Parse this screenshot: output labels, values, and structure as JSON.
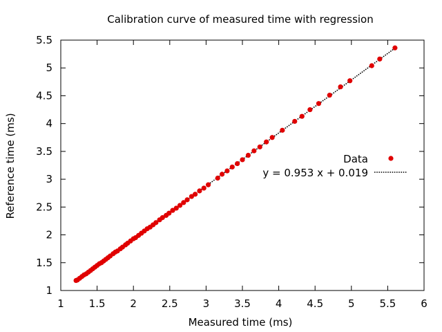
{
  "chart_data": {
    "type": "scatter",
    "title": "Calibration curve of measured time with regression",
    "xlabel": "Measured time (ms)",
    "ylabel": "Reference time (ms)",
    "xlim": [
      1,
      6
    ],
    "ylim": [
      1,
      5.5
    ],
    "xticks": [
      "1",
      "1.5",
      "2",
      "2.5",
      "3",
      "3.5",
      "4",
      "4.5",
      "5",
      "5.5",
      "6"
    ],
    "yticks": [
      "1",
      "1.5",
      "2",
      "2.5",
      "3",
      "3.5",
      "4",
      "4.5",
      "5",
      "5.5"
    ],
    "grid": false,
    "legend_position": "right",
    "series": [
      {
        "name": "Data",
        "kind": "points",
        "color": "#e00000",
        "x": [
          1.21,
          1.23,
          1.26,
          1.29,
          1.32,
          1.35,
          1.38,
          1.41,
          1.44,
          1.47,
          1.5,
          1.53,
          1.56,
          1.59,
          1.62,
          1.65,
          1.68,
          1.72,
          1.75,
          1.78,
          1.82,
          1.85,
          1.89,
          1.92,
          1.96,
          2.0,
          2.03,
          2.07,
          2.11,
          2.15,
          2.19,
          2.23,
          2.27,
          2.31,
          2.36,
          2.4,
          2.45,
          2.49,
          2.54,
          2.59,
          2.64,
          2.69,
          2.74,
          2.8,
          2.85,
          2.91,
          2.97,
          3.03,
          3.16,
          3.22,
          3.29,
          3.36,
          3.43,
          3.5,
          3.58,
          3.66,
          3.74,
          3.83,
          3.91,
          4.05,
          4.22,
          4.32,
          4.43,
          4.55,
          4.7,
          4.85,
          4.98,
          5.28,
          5.39,
          5.6
        ],
        "y": [
          1.18,
          1.19,
          1.22,
          1.25,
          1.28,
          1.3,
          1.33,
          1.36,
          1.39,
          1.42,
          1.45,
          1.48,
          1.5,
          1.53,
          1.56,
          1.59,
          1.62,
          1.66,
          1.69,
          1.71,
          1.75,
          1.78,
          1.82,
          1.85,
          1.89,
          1.93,
          1.95,
          1.99,
          2.03,
          2.07,
          2.11,
          2.14,
          2.18,
          2.22,
          2.27,
          2.31,
          2.35,
          2.39,
          2.44,
          2.48,
          2.53,
          2.58,
          2.63,
          2.69,
          2.73,
          2.79,
          2.84,
          2.9,
          3.02,
          3.09,
          3.15,
          3.22,
          3.28,
          3.35,
          3.43,
          3.51,
          3.58,
          3.67,
          3.75,
          3.88,
          4.04,
          4.13,
          4.25,
          4.36,
          4.51,
          4.66,
          4.77,
          5.04,
          5.16,
          5.36
        ]
      },
      {
        "name": "y = 0.953 x + 0.019",
        "kind": "line",
        "color": "#000000",
        "slope": 0.953,
        "intercept": 0.019,
        "x_range": [
          1.21,
          5.6
        ]
      }
    ]
  }
}
